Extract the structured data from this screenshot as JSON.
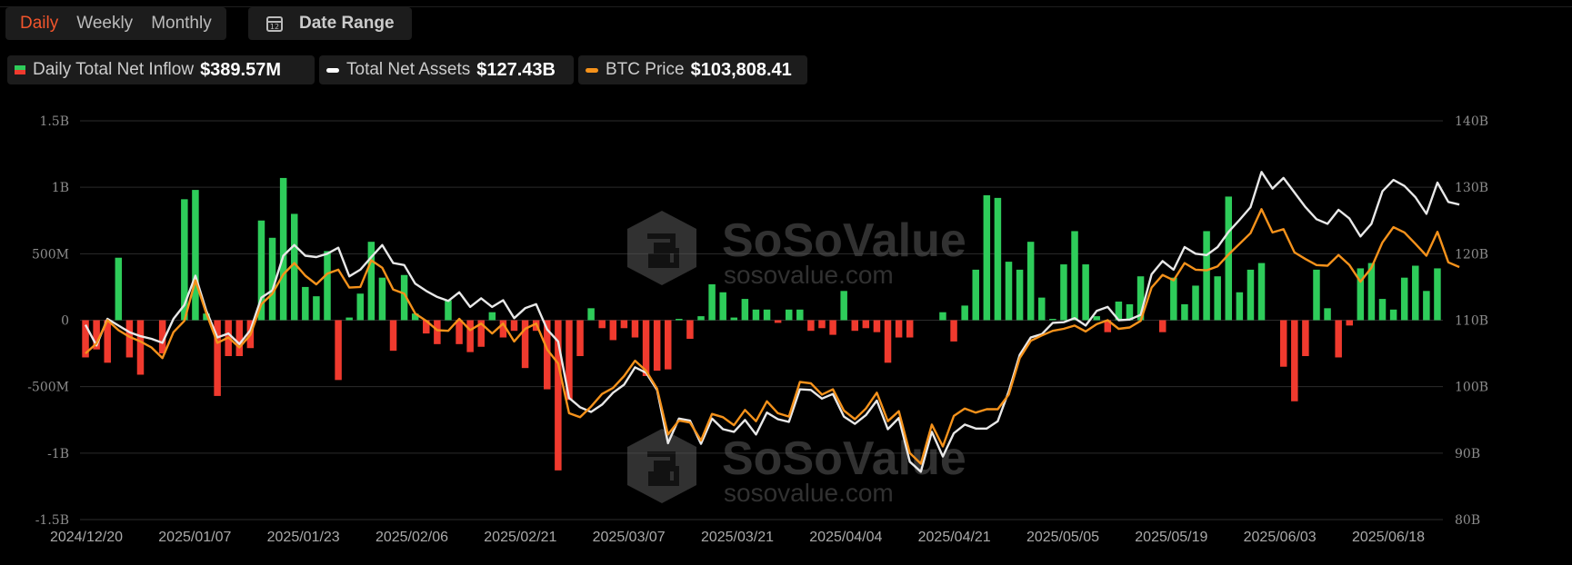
{
  "toolbar": {
    "periods": [
      "Daily",
      "Weekly",
      "Monthly"
    ],
    "active_period": "Daily",
    "date_range_label": "Date Range",
    "calendar_day": "12"
  },
  "legend": [
    {
      "name": "Daily Total Net Inflow",
      "value": "$389.57M",
      "colors": [
        "#2ecc5a",
        "#f03a2e"
      ]
    },
    {
      "name": "Total Net Assets",
      "value": "$127.43B",
      "color": "#ffffff"
    },
    {
      "name": "BTC Price",
      "value": "$103,808.41",
      "color": "#f5921b"
    }
  ],
  "watermark": {
    "brand": "SoSoValue",
    "url": "sosovalue.com"
  },
  "chart_data": {
    "type": "bar",
    "x_tick_labels": [
      "2024/12/20",
      "2025/01/07",
      "2025/01/23",
      "2025/02/06",
      "2025/02/21",
      "2025/03/07",
      "2025/03/21",
      "2025/04/04",
      "2025/04/21",
      "2025/05/05",
      "2025/05/19",
      "2025/06/03",
      "2025/06/18"
    ],
    "y_left": {
      "ticks": [
        "-1.5B",
        "-1B",
        "-500M",
        "0",
        "500M",
        "1B",
        "1.5B"
      ],
      "range": [
        -1.5,
        1.5
      ],
      "unit": "B USD"
    },
    "y_right": {
      "ticks": [
        "80B",
        "90B",
        "100B",
        "110B",
        "120B",
        "130B",
        "140B"
      ],
      "range": [
        80,
        140
      ],
      "unit": "B USD"
    },
    "grid": true,
    "colors": {
      "positive": "#2ecc5a",
      "negative": "#f03a2e",
      "assets": "#e8e8e8",
      "price": "#f5921b"
    },
    "series": [
      {
        "name": "Daily Total Net Inflow",
        "values": [
          -0.28,
          -0.22,
          -0.32,
          0.47,
          -0.28,
          -0.41,
          0.0,
          -0.25,
          0.0,
          0.91,
          0.98,
          0.05,
          -0.57,
          -0.27,
          -0.27,
          -0.21,
          0.75,
          0.62,
          1.07,
          0.8,
          0.25,
          0.18,
          0.52,
          -0.45,
          0.02,
          0.2,
          0.59,
          0.32,
          -0.23,
          0.34,
          0.05,
          -0.1,
          -0.18,
          0.15,
          -0.18,
          -0.24,
          -0.2,
          0.06,
          -0.13,
          -0.08,
          -0.36,
          -0.08,
          -0.52,
          -1.13,
          -0.6,
          -0.27,
          0.09,
          -0.06,
          -0.15,
          -0.06,
          -0.13,
          -0.42,
          -0.38,
          -0.37,
          0.01,
          -0.14,
          0.03,
          0.27,
          0.21,
          0.02,
          0.16,
          0.08,
          0.08,
          -0.02,
          0.08,
          0.08,
          -0.08,
          -0.06,
          -0.11,
          0.22,
          -0.08,
          -0.06,
          -0.09,
          -0.32,
          -0.13,
          -0.13,
          0.0,
          0.0,
          0.06,
          -0.16,
          0.11,
          0.38,
          0.94,
          0.92,
          0.44,
          0.38,
          0.59,
          0.17,
          0.01,
          0.42,
          0.67,
          0.42,
          0.03,
          -0.09,
          0.14,
          0.12,
          0.33,
          0.0,
          -0.09,
          0.32,
          0.12,
          0.26,
          0.67,
          0.33,
          0.93,
          0.21,
          0.38,
          0.43,
          0.0,
          -0.35,
          -0.61,
          -0.27,
          0.38,
          0.09,
          -0.28,
          -0.04,
          0.39,
          0.43,
          0.16,
          0.08,
          0.32,
          0.41,
          0.22,
          0.39
        ]
      },
      {
        "name": "Total Net Assets",
        "values": [
          109.3,
          106.2,
          110.2,
          109.2,
          108.2,
          107.6,
          107.2,
          106.6,
          110.2,
          112.3,
          116.7,
          111.4,
          107.4,
          108.0,
          106.4,
          108.5,
          113.4,
          114.5,
          119.7,
          121.3,
          119.7,
          119.5,
          120.0,
          120.9,
          116.6,
          117.6,
          119.5,
          121.3,
          118.6,
          118.3,
          115.5,
          114.4,
          113.5,
          112.9,
          114.2,
          112.0,
          113.3,
          112.0,
          113.0,
          110.3,
          111.8,
          112.4,
          108.6,
          106.8,
          98.3,
          96.9,
          96.2,
          97.3,
          99.1,
          100.3,
          102.9,
          102.1,
          99.5,
          91.5,
          95.2,
          94.9,
          91.4,
          95.2,
          93.6,
          93.2,
          95.0,
          92.8,
          96.1,
          95.1,
          94.7,
          99.6,
          99.5,
          98.2,
          98.9,
          95.5,
          94.4,
          95.7,
          97.9,
          93.6,
          95.3,
          88.7,
          87.2,
          93.2,
          89.5,
          93.0,
          94.3,
          93.7,
          93.7,
          94.8,
          99.3,
          104.8,
          107.4,
          107.9,
          109.6,
          109.7,
          110.3,
          109.2,
          111.4,
          112.0,
          110.0,
          110.1,
          110.8,
          116.9,
          118.9,
          117.6,
          121.0,
          120.0,
          119.8,
          121.0,
          123.3,
          125.1,
          127.0,
          132.3,
          129.8,
          131.4,
          129.2,
          127.0,
          125.2,
          124.5,
          126.6,
          125.3,
          122.6,
          124.5,
          129.4,
          131.1,
          130.2,
          128.5,
          126.0,
          130.7,
          127.8,
          127.4
        ]
      },
      {
        "name": "BTC Price",
        "values": [
          105.0,
          106.5,
          110.0,
          108.5,
          107.5,
          106.8,
          105.9,
          104.3,
          108.2,
          109.9,
          116.0,
          111.0,
          106.6,
          107.4,
          105.9,
          107.8,
          112.4,
          114.0,
          116.9,
          118.6,
          116.7,
          115.4,
          117.0,
          117.6,
          114.9,
          115.0,
          119.0,
          117.9,
          114.6,
          114.0,
          111.0,
          109.9,
          108.5,
          108.4,
          110.2,
          108.5,
          109.5,
          108.0,
          109.5,
          106.8,
          108.7,
          109.5,
          105.6,
          103.5,
          96.0,
          95.4,
          97.0,
          98.9,
          99.8,
          101.6,
          103.9,
          102.4,
          99.7,
          92.8,
          94.9,
          94.6,
          91.9,
          95.9,
          95.4,
          94.2,
          96.5,
          94.8,
          97.8,
          96.0,
          95.5,
          100.7,
          100.5,
          98.8,
          99.6,
          96.4,
          95.1,
          96.7,
          99.1,
          94.8,
          96.3,
          90.0,
          88.4,
          94.3,
          91.0,
          95.6,
          96.7,
          96.1,
          96.6,
          96.6,
          98.8,
          104.3,
          106.9,
          107.7,
          108.4,
          108.7,
          109.2,
          108.3,
          109.4,
          110.0,
          108.7,
          108.9,
          109.9,
          114.9,
          116.8,
          116.0,
          118.6,
          117.6,
          117.5,
          118.1,
          119.9,
          121.5,
          123.1,
          126.7,
          123.2,
          123.7,
          120.2,
          119.2,
          118.3,
          118.2,
          119.8,
          118.3,
          115.8,
          117.9,
          121.7,
          124.0,
          123.2,
          121.5,
          119.7,
          123.3,
          118.7,
          118.0
        ]
      }
    ]
  }
}
